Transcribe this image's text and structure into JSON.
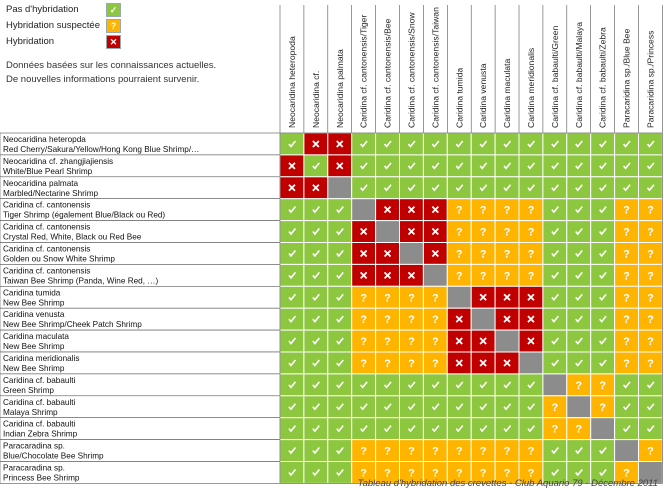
{
  "legend": {
    "items": [
      {
        "label": "Pas d'hybridation",
        "symbol": "✓",
        "color": "#8dc63f"
      },
      {
        "label": "Hybridation suspectée",
        "symbol": "?",
        "color": "#ffb400"
      },
      {
        "label": "Hybridation",
        "symbol": "✕",
        "color": "#c00000"
      }
    ],
    "note_line1": "Données basées sur les connaissances actuelles.",
    "note_line2": "De nouvelles informations pourraient survenir."
  },
  "colors": {
    "no": "#8dc63f",
    "maybe": "#ffb400",
    "yes": "#c00000",
    "self": "#8c8c8c",
    "grid": "#ffffff",
    "border": "#7f7f7f"
  },
  "columns": [
    "Neocaridina heteropoda",
    "Neocaridina cf.",
    "Neocaridina palmata",
    "Caridina cf. cantonensis/Tiger",
    "Caridina cf. cantonensis/Bee",
    "Caridina cf. cantonensis/Snow",
    "Caridina cf. cantonensis/Taiwan",
    "Caridina tumida",
    "Caridina venusta",
    "Caridina maculata",
    "Caridina meridionalis",
    "Caridina cf. babaulti/Green",
    "Caridina cf. babaulti/Malaya",
    "Caridina cf. babaulti/Zebra",
    "Paracaridina sp./Blue Bee",
    "Paracaridina sp./Princess"
  ],
  "rows": [
    {
      "line1": "Neocaridina heteropda",
      "line2": "Red Cherry/Sakura/Yellow/Hong Kong Blue Shrimp/…",
      "cells": "NYYNNNNNNNNNNNNN"
    },
    {
      "line1": "Neocaridina cf. zhangjiajiensis",
      "line2": "White/Blue Pearl Shrimp",
      "cells": "YNYNNNNNNNNNNNNN"
    },
    {
      "line1": "Neocaridina palmata",
      "line2": "Marbled/Nectarine Shrimp",
      "cells": "YYSNNNNNNNNNNNNN"
    },
    {
      "line1": "Caridina cf. cantonensis",
      "line2": "Tiger Shrimp (également Blue/Black ou Red)",
      "cells": "NNNSYYYMMMMNNNMM"
    },
    {
      "line1": "Caridina cf. cantonensis",
      "line2": "Crystal Red, White, Black ou Red Bee",
      "cells": "NNNYSYYMMMMNNNMM"
    },
    {
      "line1": "Caridina cf. cantonensis",
      "line2": "Golden ou Snow White Shrimp",
      "cells": "NNNYYSYMMMMNNNMM"
    },
    {
      "line1": "Caridina cf. cantonensis",
      "line2": "Taiwan Bee Shrimp (Panda, Wine Red, …)",
      "cells": "NNNYYYSMMMMNNNMM"
    },
    {
      "line1": "Caridina tumida",
      "line2": "New Bee Shrimp",
      "cells": "NNNMMMMSYYYNNNMM"
    },
    {
      "line1": "Caridina venusta",
      "line2": "New Bee Shrimp/Cheek Patch Shrimp",
      "cells": "NNNMMMMYSYYNNNMM"
    },
    {
      "line1": "Caridina maculata",
      "line2": "New Bee Shrimp",
      "cells": "NNNMMMMYYSYNNNMM"
    },
    {
      "line1": "Caridina meridionalis",
      "line2": "New Bee Shrimp",
      "cells": "NNNMMMMYYYSNNNMM"
    },
    {
      "line1": "Caridina cf. babaulti",
      "line2": "Green Shrimp",
      "cells": "NNNNNNNNNNNSMMNN"
    },
    {
      "line1": "Caridina cf. babaulti",
      "line2": "Malaya Shrimp",
      "cells": "NNNNNNNNNNNMSMNN"
    },
    {
      "line1": "Caridina cf. babaulti",
      "line2": "Indian Zebra Shrimp",
      "cells": "NNNNNNNNNNNMMSNN"
    },
    {
      "line1": "Paracaradina sp.",
      "line2": "Blue/Chocolate Bee Shrimp",
      "cells": "NNNMMMMMMMMNNNSM"
    },
    {
      "line1": "Paracaradina sp.",
      "line2": "Princess Bee Shrimp",
      "cells": "NNNMMMMMMMMNNNMS"
    }
  ],
  "caption": "Tableau d'hybridation des crevettes - Club Aquario 79 - Décembre 2011"
}
